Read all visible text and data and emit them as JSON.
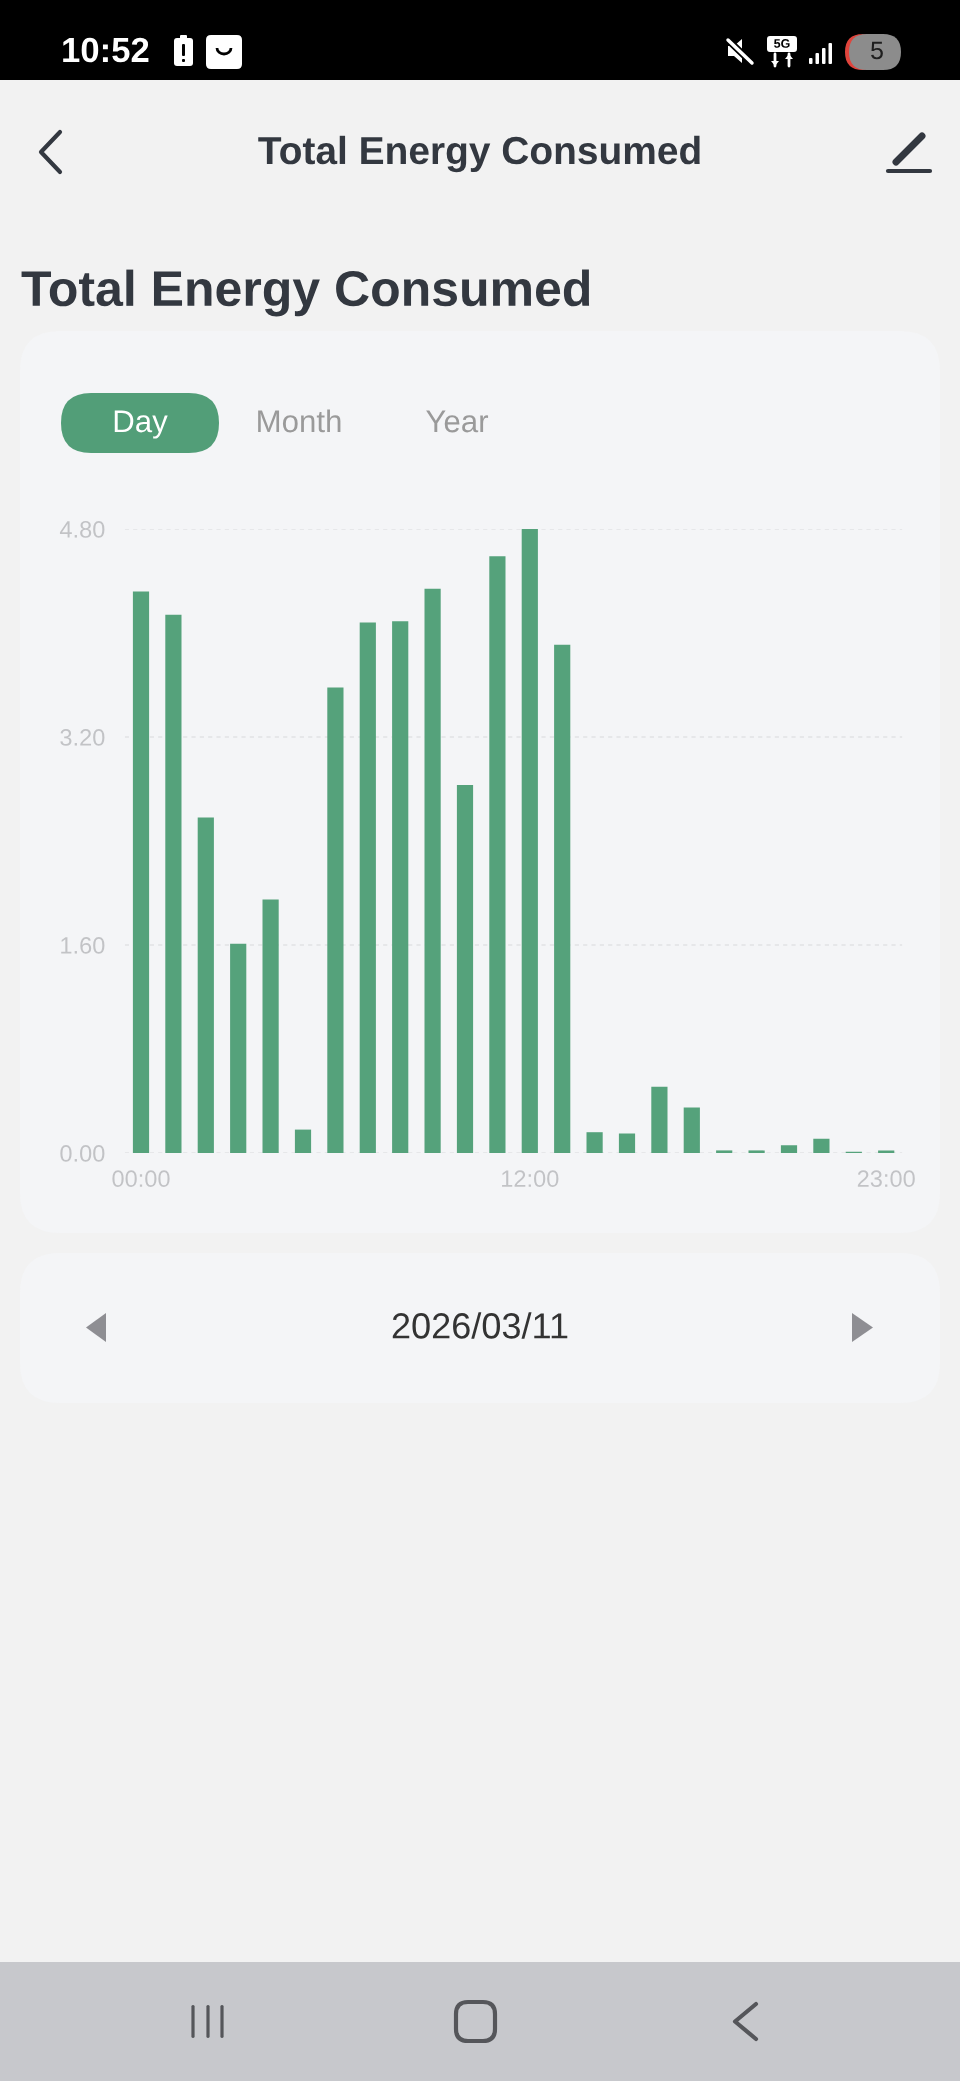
{
  "chart_data": {
    "type": "bar",
    "title": "Total Energy Consumed",
    "categories": [
      "00:00",
      null,
      null,
      null,
      null,
      null,
      null,
      null,
      null,
      null,
      null,
      null,
      "12:00",
      null,
      null,
      null,
      null,
      null,
      null,
      null,
      null,
      null,
      null,
      "23:00"
    ],
    "values": [
      4.32,
      4.14,
      2.58,
      1.61,
      1.95,
      0.18,
      3.58,
      4.08,
      4.09,
      4.34,
      2.83,
      4.59,
      4.8,
      3.91,
      0.16,
      0.15,
      0.51,
      0.35,
      0.02,
      0.02,
      0.06,
      0.11,
      0.01,
      0.02
    ],
    "color": "#55a27b",
    "ylim": [
      0,
      4.8
    ],
    "yticks": [
      {
        "value": 0,
        "label": "0.00"
      },
      {
        "value": 1.6,
        "label": "1.60"
      },
      {
        "value": 3.2,
        "label": "3.20"
      },
      {
        "value": 4.8,
        "label": "4.80"
      }
    ],
    "grid": "y",
    "annotations": [
      "10:52",
      "5G",
      "5",
      "Total Energy Consumed",
      "Day",
      "Month",
      "Year",
      "2026/03/11"
    ]
  }
}
